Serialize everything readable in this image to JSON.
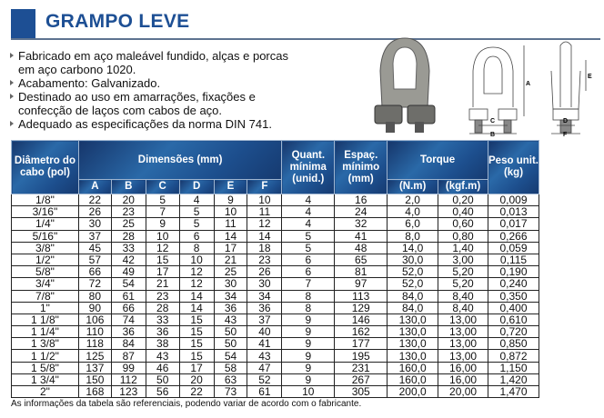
{
  "title": "GRAMPO LEVE",
  "bullets": [
    "Fabricado em aço maleável fundido, alças e porcas em aço carbono 1020.",
    "Acabamento: Galvanizado.",
    "Destinado ao uso em amarrações, fixações e confecção de laços com cabos de aço.",
    "Adequado as especificações da norma DIN 741."
  ],
  "diagram_labels": {
    "A": "A",
    "B": "B",
    "C": "C",
    "D": "D",
    "E": "E",
    "F": "F"
  },
  "table": {
    "headers": {
      "diam": "Diâmetro do cabo (pol)",
      "dims": "Dimensões (mm)",
      "quant": "Quant. mínima (unid.)",
      "espac": "Espaç. mínimo (mm)",
      "torque": "Torque",
      "peso": "Peso unit. (kg)",
      "sub": [
        "A",
        "B",
        "C",
        "D",
        "E",
        "F"
      ],
      "torque_sub": [
        "(N.m)",
        "(kgf.m)"
      ]
    },
    "rows": [
      [
        "1/8\"",
        "22",
        "20",
        "5",
        "4",
        "9",
        "10",
        "4",
        "16",
        "2,0",
        "0,20",
        "0,009"
      ],
      [
        "3/16\"",
        "26",
        "23",
        "7",
        "5",
        "10",
        "11",
        "4",
        "24",
        "4,0",
        "0,40",
        "0,013"
      ],
      [
        "1/4\"",
        "30",
        "25",
        "9",
        "5",
        "11",
        "12",
        "4",
        "32",
        "6,0",
        "0,60",
        "0,017"
      ],
      [
        "5/16\"",
        "37",
        "28",
        "10",
        "6",
        "14",
        "14",
        "5",
        "41",
        "8,0",
        "0,80",
        "0,266"
      ],
      [
        "3/8\"",
        "45",
        "33",
        "12",
        "8",
        "17",
        "18",
        "5",
        "48",
        "14,0",
        "1,40",
        "0,059"
      ],
      [
        "1/2\"",
        "57",
        "42",
        "15",
        "10",
        "21",
        "23",
        "6",
        "65",
        "30,0",
        "3,00",
        "0,115"
      ],
      [
        "5/8\"",
        "66",
        "49",
        "17",
        "12",
        "25",
        "26",
        "6",
        "81",
        "52,0",
        "5,20",
        "0,190"
      ],
      [
        "3/4\"",
        "72",
        "54",
        "21",
        "12",
        "30",
        "30",
        "7",
        "97",
        "52,0",
        "5,20",
        "0,240"
      ],
      [
        "7/8\"",
        "80",
        "61",
        "23",
        "14",
        "34",
        "34",
        "8",
        "113",
        "84,0",
        "8,40",
        "0,350"
      ],
      [
        "1\"",
        "90",
        "66",
        "28",
        "14",
        "36",
        "36",
        "8",
        "129",
        "84,0",
        "8,40",
        "0,400"
      ],
      [
        "1 1/8\"",
        "106",
        "74",
        "33",
        "15",
        "43",
        "37",
        "9",
        "146",
        "130,0",
        "13,00",
        "0,610"
      ],
      [
        "1 1/4\"",
        "110",
        "36",
        "36",
        "15",
        "50",
        "40",
        "9",
        "162",
        "130,0",
        "13,00",
        "0,720"
      ],
      [
        "1 3/8\"",
        "118",
        "84",
        "38",
        "15",
        "50",
        "41",
        "9",
        "177",
        "130,0",
        "13,00",
        "0,850"
      ],
      [
        "1 1/2\"",
        "125",
        "87",
        "43",
        "15",
        "54",
        "43",
        "9",
        "195",
        "130,0",
        "13,00",
        "0,872"
      ],
      [
        "1 5/8\"",
        "137",
        "99",
        "46",
        "17",
        "58",
        "47",
        "9",
        "231",
        "160,0",
        "16,00",
        "1,150"
      ],
      [
        "1 3/4\"",
        "150",
        "112",
        "50",
        "20",
        "63",
        "52",
        "9",
        "267",
        "160,0",
        "16,00",
        "1,420"
      ],
      [
        "2\"",
        "168",
        "123",
        "56",
        "22",
        "73",
        "61",
        "10",
        "305",
        "200,0",
        "20,00",
        "1,470"
      ]
    ]
  },
  "note": "As informações da tabela são referenciais, podendo variar de acordo com o fabricante."
}
